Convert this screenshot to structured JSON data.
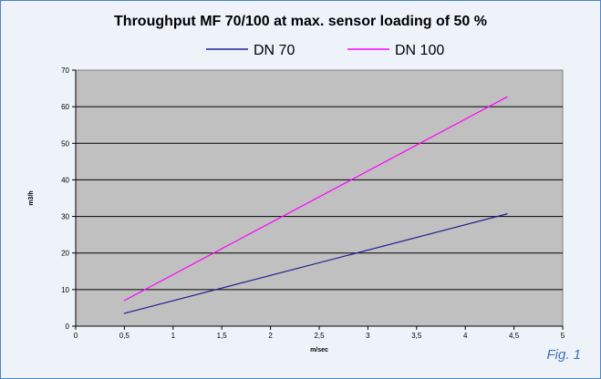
{
  "chart_data": {
    "type": "line",
    "title": "Throughput MF 70/100 at max. sensor loading of 50 %",
    "xlabel": "m/sec",
    "ylabel": "m3/h",
    "xlim": [
      0,
      5
    ],
    "ylim": [
      0,
      70
    ],
    "xticks": [
      "0",
      "0,5",
      "1",
      "1,5",
      "2",
      "2,5",
      "3",
      "3,5",
      "4",
      "4,5",
      "5"
    ],
    "yticks": [
      "0",
      "10",
      "20",
      "30",
      "40",
      "50",
      "60",
      "70"
    ],
    "grid": "horizontal",
    "plot_background": "#c0c0c0",
    "legend": "top",
    "series": [
      {
        "name": "DN 70",
        "color": "#1f1f8f",
        "x": [
          0.5,
          4.43
        ],
        "y": [
          3.5,
          30.7
        ]
      },
      {
        "name": "DN 100",
        "color": "#ff00ff",
        "x": [
          0.5,
          4.43
        ],
        "y": [
          7.0,
          62.7
        ]
      }
    ]
  },
  "figure_label": "Fig. 1"
}
